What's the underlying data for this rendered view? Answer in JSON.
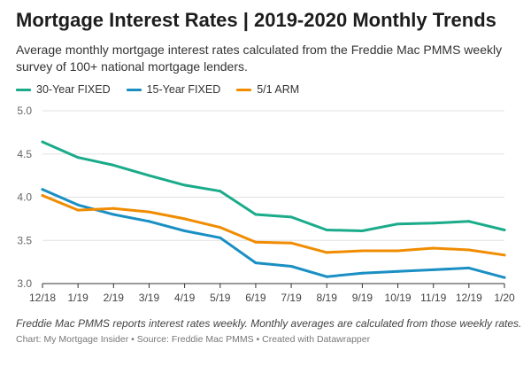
{
  "header": {
    "title": "Mortgage Interest Rates | 2019-2020 Monthly Trends",
    "subtitle": "Average monthly mortgage interest rates calculated from the Freddie Mac PMMS weekly survey of 100+ national mortgage lenders."
  },
  "footer": {
    "note": "Freddie Mac PMMS reports interest rates weekly. Monthly averages are calculated from those weekly rates.",
    "source": "Chart: My Mortgage Insider • Source: Freddie Mac PMMS • Created with Datawrapper"
  },
  "chart_data": {
    "type": "line",
    "title": "Mortgage Interest Rates | 2019-2020 Monthly Trends",
    "xlabel": "",
    "ylabel": "",
    "ylim": [
      3.0,
      5.0
    ],
    "yticks": [
      "5.0",
      "4.5",
      "4.0",
      "3.5",
      "3.0"
    ],
    "ytick_values": [
      5.0,
      4.5,
      4.0,
      3.5,
      3.0
    ],
    "grid": true,
    "legend_position": "top-left",
    "categories": [
      "12/18",
      "1/19",
      "2/19",
      "3/19",
      "4/19",
      "5/19",
      "6/19",
      "7/19",
      "8/19",
      "9/19",
      "10/19",
      "11/19",
      "12/19",
      "1/20"
    ],
    "series": [
      {
        "name": "30-Year FIXED",
        "color": "#1aab8a",
        "values": [
          4.64,
          4.46,
          4.37,
          4.25,
          4.14,
          4.07,
          3.8,
          3.77,
          3.62,
          3.61,
          3.69,
          3.7,
          3.72,
          3.62
        ]
      },
      {
        "name": "15-Year FIXED",
        "color": "#1a8fc3",
        "values": [
          4.09,
          3.91,
          3.8,
          3.72,
          3.61,
          3.53,
          3.24,
          3.2,
          3.08,
          3.12,
          3.14,
          3.16,
          3.18,
          3.07
        ]
      },
      {
        "name": "5/1 ARM",
        "color": "#f08c00",
        "values": [
          4.02,
          3.85,
          3.87,
          3.83,
          3.75,
          3.65,
          3.48,
          3.47,
          3.36,
          3.38,
          3.38,
          3.41,
          3.39,
          3.33
        ]
      }
    ]
  }
}
